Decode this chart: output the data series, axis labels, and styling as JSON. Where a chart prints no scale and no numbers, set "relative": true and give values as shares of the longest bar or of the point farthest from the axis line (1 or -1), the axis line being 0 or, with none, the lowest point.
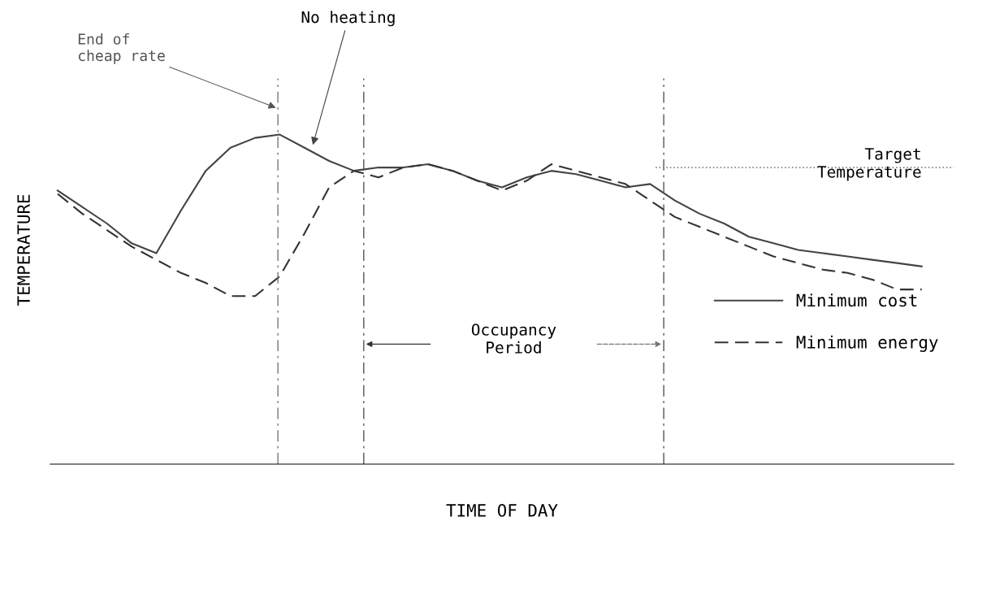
{
  "chart_data": {
    "type": "line",
    "relative": true,
    "xlabel": "TIME OF DAY",
    "ylabel": "TEMPERATURE",
    "categories": [
      null,
      null,
      null,
      null,
      null,
      null,
      null,
      null,
      null,
      null,
      null,
      null,
      null,
      null,
      null,
      null,
      null,
      null,
      null,
      null,
      null,
      null,
      null,
      null,
      null,
      null,
      null,
      null,
      null,
      null,
      null,
      null,
      null,
      null,
      null,
      null
    ],
    "series": [
      {
        "name": "Minimum cost",
        "color": "#444444",
        "line_style": "solid",
        "values": [
          0.83,
          0.78,
          0.73,
          0.67,
          0.64,
          0.77,
          0.89,
          0.96,
          0.99,
          1.0,
          0.96,
          0.92,
          0.89,
          0.9,
          0.9,
          0.91,
          0.89,
          0.86,
          0.84,
          0.87,
          0.89,
          0.88,
          0.86,
          0.84,
          0.85,
          0.8,
          0.76,
          0.73,
          0.69,
          0.67,
          0.65,
          0.64,
          0.63,
          0.62,
          0.61,
          0.6
        ]
      },
      {
        "name": "Minimum energy",
        "color": "#333333",
        "line_style": "dashed",
        "values": [
          0.82,
          0.76,
          0.71,
          0.66,
          0.62,
          0.58,
          0.55,
          0.51,
          0.51,
          0.57,
          0.7,
          0.84,
          0.89,
          0.87,
          0.9,
          0.91,
          0.89,
          0.86,
          0.83,
          0.86,
          0.91,
          0.89,
          0.87,
          0.85,
          0.8,
          0.75,
          0.72,
          0.69,
          0.66,
          0.63,
          0.61,
          0.59,
          0.58,
          0.56,
          0.53,
          0.53
        ]
      }
    ],
    "ref_lines": [
      {
        "axis": "y",
        "value": 0.9,
        "label": "Target\nTemperature",
        "color": "#888888",
        "line_style": "dotted"
      }
    ],
    "annotations": [
      "End of\ncheap rate",
      "No heating",
      "Occupancy\nPeriod"
    ],
    "legend": "right",
    "tick_labels": false,
    "marker": "none"
  }
}
